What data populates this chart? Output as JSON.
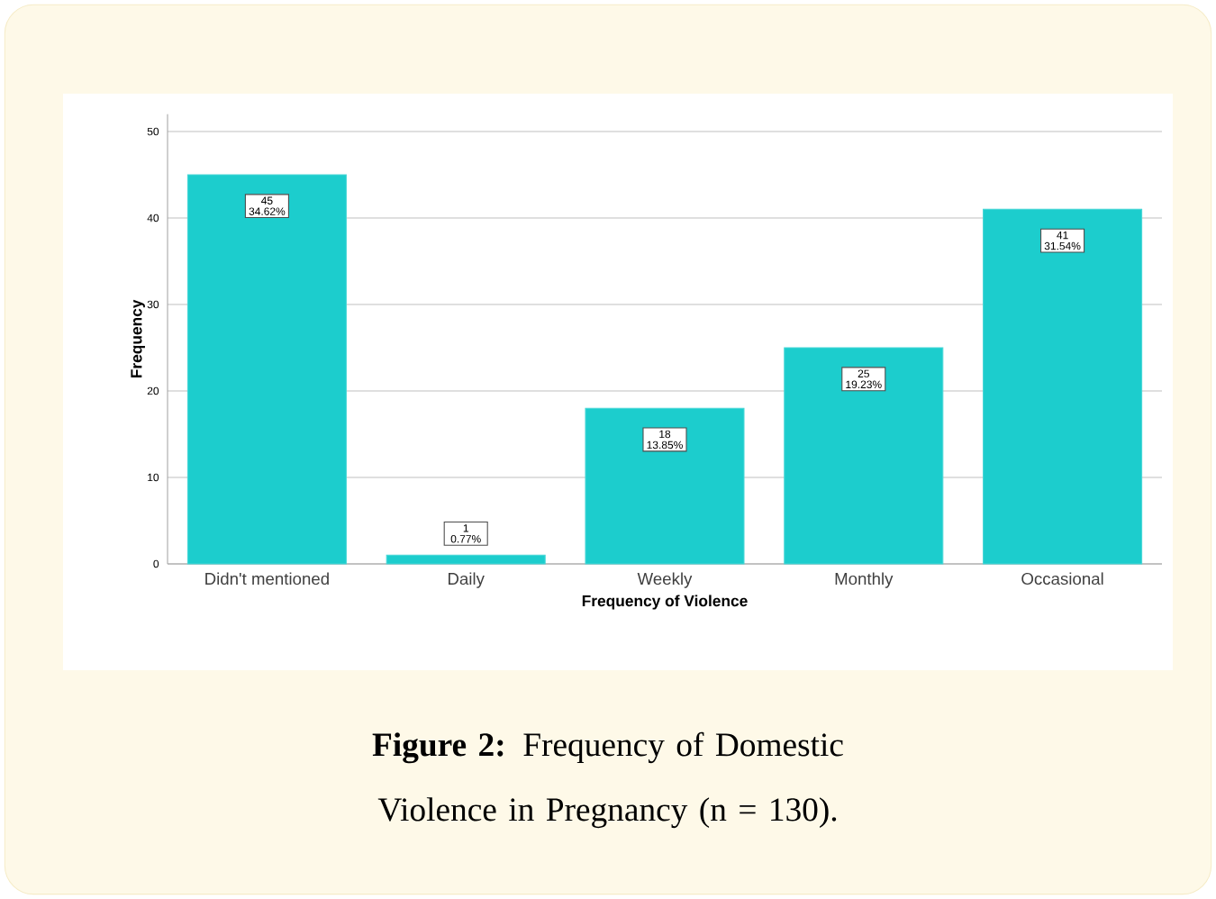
{
  "chart_data": {
    "type": "bar",
    "title": "**Figure 2:** Frequency of Domestic Violence in Pregnancy (n = 130).",
    "xlabel": "Frequency of Violence",
    "ylabel": "Frequency",
    "categories": [
      "Didn't mentioned",
      "Daily",
      "Weekly",
      "Monthly",
      "Occasional"
    ],
    "values": [
      45,
      1,
      18,
      25,
      41
    ],
    "value_labels": [
      "45 34.62%",
      "1 0.77%",
      "18 13.85%",
      "25 19.23%",
      "41 31.54%"
    ],
    "color": "#1ccdcd",
    "ylim": [
      0,
      52
    ],
    "yticks": [
      0,
      10,
      20,
      30,
      40,
      50
    ],
    "grid": "y"
  }
}
